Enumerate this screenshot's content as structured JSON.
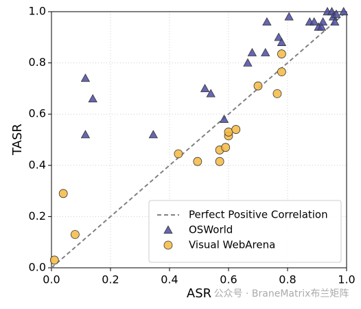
{
  "chart_data": {
    "type": "scatter",
    "xlabel": "ASR",
    "ylabel": "TASR",
    "xlim": [
      0,
      1
    ],
    "ylim": [
      0,
      1
    ],
    "xticks": [
      {
        "value": 0,
        "label": "0.0"
      },
      {
        "value": 0.2,
        "label": "0.2"
      },
      {
        "value": 0.4,
        "label": "0.4"
      },
      {
        "value": 0.6,
        "label": "0.6"
      },
      {
        "value": 0.8,
        "label": "0.8"
      },
      {
        "value": 1,
        "label": "1.0"
      }
    ],
    "yticks": [
      {
        "value": 0,
        "label": "0.0"
      },
      {
        "value": 0.2,
        "label": "0.2"
      },
      {
        "value": 0.4,
        "label": "0.4"
      },
      {
        "value": 0.6,
        "label": "0.6"
      },
      {
        "value": 0.8,
        "label": "0.8"
      },
      {
        "value": 1,
        "label": "1.0"
      }
    ],
    "grid": true,
    "legend": "lower right",
    "series": [
      {
        "name": "Perfect Positive Correlation",
        "type": "line",
        "color": "#808080",
        "x": [
          0,
          1
        ],
        "values": [
          0,
          1
        ]
      },
      {
        "name": "OSWorld",
        "type": "scatter",
        "marker": "triangle",
        "color": "#4b4ba3",
        "x": [
          0.115,
          0.14,
          0.115,
          0.345,
          0.52,
          0.54,
          0.585,
          0.665,
          0.68,
          0.725,
          0.73,
          0.77,
          0.78,
          0.805,
          0.875,
          0.89,
          0.905,
          0.915,
          0.92,
          0.935,
          0.95,
          0.955,
          0.96,
          0.965,
          0.99
        ],
        "values": [
          0.74,
          0.66,
          0.52,
          0.52,
          0.7,
          0.68,
          0.58,
          0.8,
          0.84,
          0.84,
          0.96,
          0.9,
          0.88,
          0.98,
          0.96,
          0.96,
          0.94,
          0.94,
          0.96,
          1.0,
          1.0,
          0.98,
          0.96,
          0.99,
          1.0
        ]
      },
      {
        "name": "Visual WebArena",
        "type": "scatter",
        "marker": "circle",
        "color": "#f5b942",
        "x": [
          0.01,
          0.04,
          0.08,
          0.43,
          0.495,
          0.57,
          0.57,
          0.59,
          0.6,
          0.6,
          0.625,
          0.7,
          0.765,
          0.78,
          0.78
        ],
        "values": [
          0.03,
          0.29,
          0.13,
          0.445,
          0.415,
          0.415,
          0.46,
          0.47,
          0.515,
          0.53,
          0.54,
          0.71,
          0.68,
          0.765,
          0.835
        ]
      }
    ],
    "watermark": "公众号 · BraneMatrix布兰矩阵"
  }
}
